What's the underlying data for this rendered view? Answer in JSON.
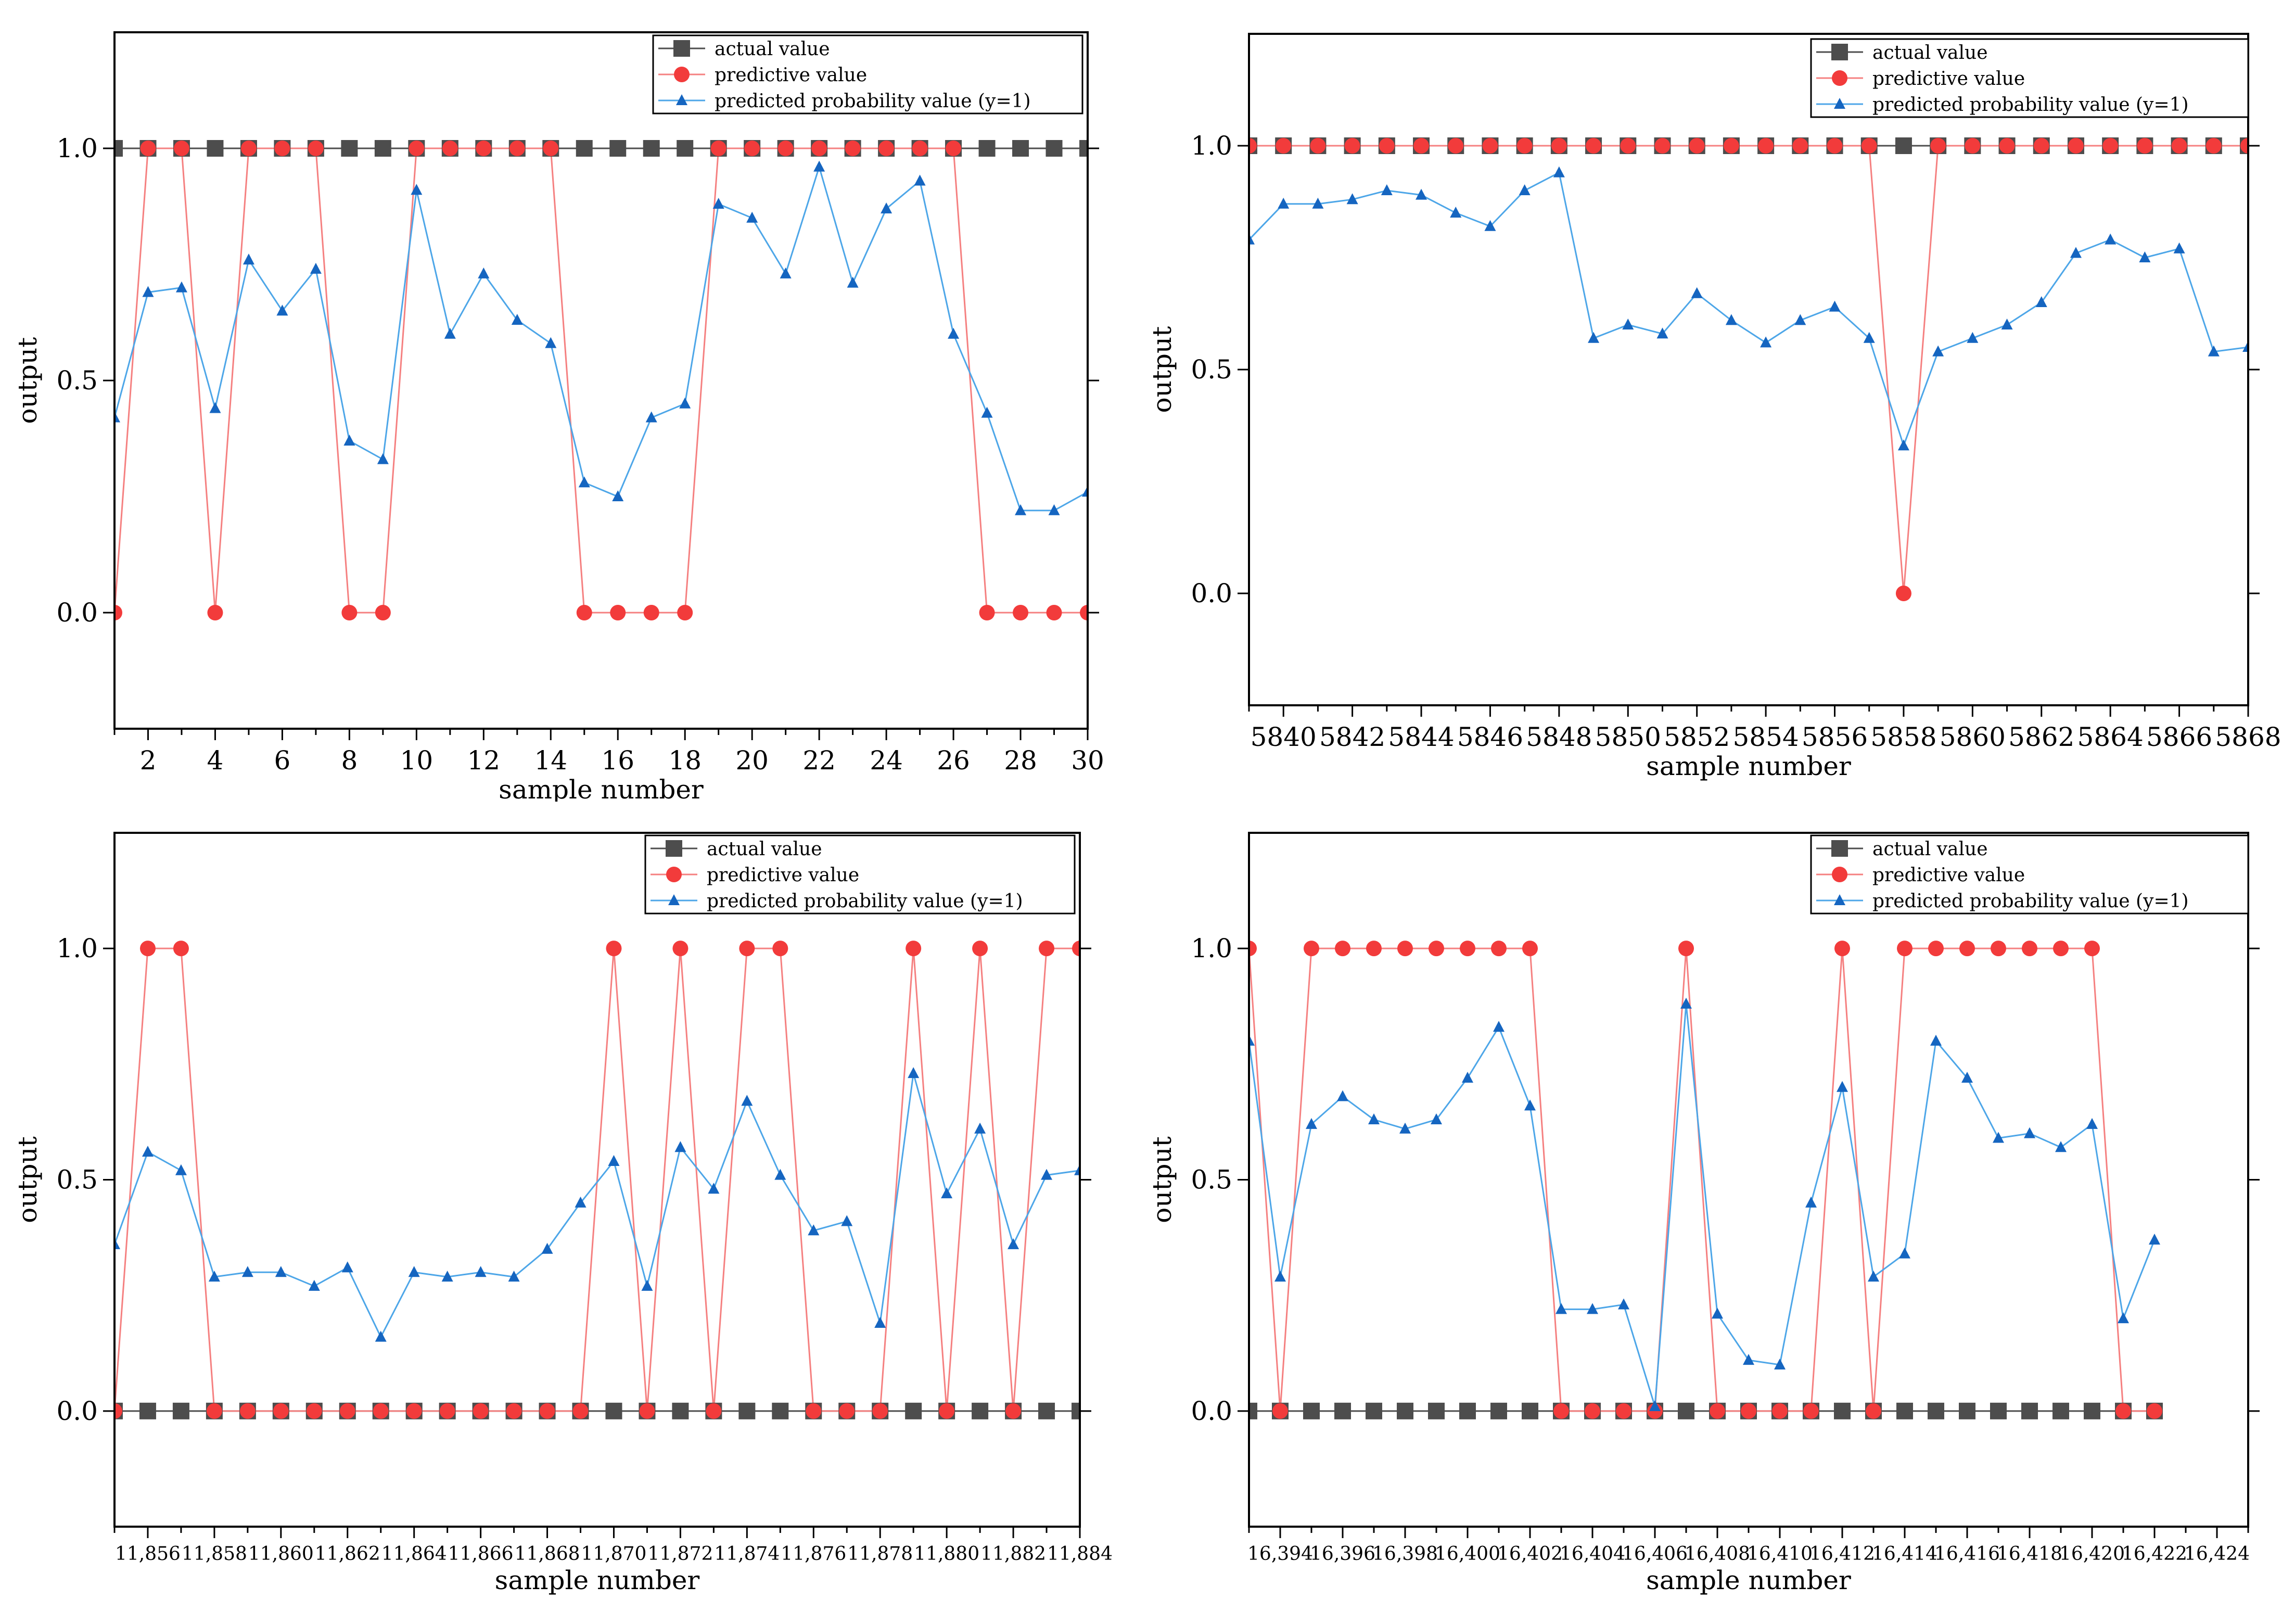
{
  "legend": {
    "actual": "actual value",
    "predictive": "predictive value",
    "probability": "predicted probability value (y=1)"
  },
  "colors": {
    "actual": "#4d4d4d",
    "predictive": "#f23b3b",
    "predictive_line": "#f58080",
    "probability": "#1565c0",
    "probability_line": "#4da6e8"
  },
  "chart_data": [
    {
      "type": "line",
      "title": "",
      "xlabel": "sample number",
      "ylabel": "output",
      "x_start": 1,
      "xlim": [
        1,
        30
      ],
      "ylim": [
        -0.25,
        1.25
      ],
      "yticks": [
        0.0,
        0.5,
        1.0
      ],
      "ytick_labels": [
        "0.0",
        "0.5",
        "1.0"
      ],
      "xticks": [
        2,
        4,
        6,
        8,
        10,
        12,
        14,
        16,
        18,
        20,
        22,
        24,
        26,
        28,
        30
      ],
      "xtick_labels": [
        "2",
        "4",
        "6",
        "8",
        "10",
        "12",
        "14",
        "16",
        "18",
        "20",
        "22",
        "24",
        "26",
        "28",
        "30"
      ],
      "series": [
        {
          "name": "actual value",
          "values": [
            1,
            1,
            1,
            1,
            1,
            1,
            1,
            1,
            1,
            1,
            1,
            1,
            1,
            1,
            1,
            1,
            1,
            1,
            1,
            1,
            1,
            1,
            1,
            1,
            1,
            1,
            1,
            1,
            1,
            1
          ]
        },
        {
          "name": "predictive value",
          "values": [
            0,
            1,
            1,
            0,
            1,
            1,
            1,
            0,
            0,
            1,
            1,
            1,
            1,
            1,
            0,
            0,
            0,
            0,
            1,
            1,
            1,
            1,
            1,
            1,
            1,
            1,
            0,
            0,
            0,
            0
          ]
        },
        {
          "name": "predicted probability value (y=1)",
          "values": [
            0.42,
            0.69,
            0.7,
            0.44,
            0.76,
            0.65,
            0.74,
            0.37,
            0.33,
            0.91,
            0.6,
            0.73,
            0.63,
            0.58,
            0.28,
            0.25,
            0.42,
            0.45,
            0.88,
            0.85,
            0.73,
            0.96,
            0.71,
            0.87,
            0.93,
            0.6,
            0.43,
            0.22,
            0.22,
            0.26
          ]
        }
      ]
    },
    {
      "type": "line",
      "title": "",
      "xlabel": "sample number",
      "ylabel": "output",
      "x_start": 5839,
      "xlim": [
        5839,
        5868
      ],
      "ylim": [
        -0.25,
        1.25
      ],
      "yticks": [
        0.0,
        0.5,
        1.0
      ],
      "ytick_labels": [
        "0.0",
        "0.5",
        "1.0"
      ],
      "xticks": [
        5840,
        5842,
        5844,
        5846,
        5848,
        5850,
        5852,
        5854,
        5856,
        5858,
        5860,
        5862,
        5864,
        5866,
        5868
      ],
      "xtick_labels": [
        "5840",
        "5842",
        "5844",
        "5846",
        "5848",
        "5850",
        "5852",
        "5854",
        "5856",
        "5858",
        "5860",
        "5862",
        "5864",
        "5866",
        "5868"
      ],
      "series": [
        {
          "name": "actual value",
          "values": [
            1,
            1,
            1,
            1,
            1,
            1,
            1,
            1,
            1,
            1,
            1,
            1,
            1,
            1,
            1,
            1,
            1,
            1,
            1,
            1,
            1,
            1,
            1,
            1,
            1,
            1,
            1,
            1,
            1,
            1
          ]
        },
        {
          "name": "predictive value",
          "values": [
            1,
            1,
            1,
            1,
            1,
            1,
            1,
            1,
            1,
            1,
            1,
            1,
            1,
            1,
            1,
            1,
            1,
            1,
            1,
            0,
            1,
            1,
            1,
            1,
            1,
            1,
            1,
            1,
            1,
            1
          ]
        },
        {
          "name": "predicted probability value (y=1)",
          "values": [
            0.79,
            0.87,
            0.87,
            0.88,
            0.9,
            0.89,
            0.85,
            0.82,
            0.9,
            0.94,
            0.57,
            0.6,
            0.58,
            0.67,
            0.61,
            0.56,
            0.61,
            0.64,
            0.57,
            0.33,
            0.54,
            0.57,
            0.6,
            0.65,
            0.76,
            0.79,
            0.75,
            0.77,
            0.54,
            0.55
          ]
        }
      ]
    },
    {
      "type": "line",
      "title": "",
      "xlabel": "sample number",
      "ylabel": "output",
      "x_start": 11855,
      "xlim": [
        11855,
        11884
      ],
      "ylim": [
        -0.25,
        1.25
      ],
      "yticks": [
        0.0,
        0.5,
        1.0
      ],
      "ytick_labels": [
        "0.0",
        "0.5",
        "1.0"
      ],
      "xticks": [
        11856,
        11858,
        11860,
        11862,
        11864,
        11866,
        11868,
        11870,
        11872,
        11874,
        11876,
        11878,
        11880,
        11882,
        11884
      ],
      "xtick_labels": [
        "11,856",
        "11,858",
        "11,860",
        "11,862",
        "11,864",
        "11,866",
        "11,868",
        "11,870",
        "11,872",
        "11,874",
        "11,876",
        "11,878",
        "11,880",
        "11,882",
        "11,884"
      ],
      "series": [
        {
          "name": "actual value",
          "values": [
            0,
            0,
            0,
            0,
            0,
            0,
            0,
            0,
            0,
            0,
            0,
            0,
            0,
            0,
            0,
            0,
            0,
            0,
            0,
            0,
            0,
            0,
            0,
            0,
            0,
            0,
            0,
            0,
            0,
            0
          ]
        },
        {
          "name": "predictive value",
          "values": [
            0,
            1,
            1,
            0,
            0,
            0,
            0,
            0,
            0,
            0,
            0,
            0,
            0,
            0,
            0,
            1,
            0,
            1,
            0,
            1,
            1,
            0,
            0,
            0,
            1,
            0,
            1,
            0,
            1,
            1
          ]
        },
        {
          "name": "predicted probability value (y=1)",
          "values": [
            0.36,
            0.56,
            0.52,
            0.29,
            0.3,
            0.3,
            0.27,
            0.31,
            0.16,
            0.3,
            0.29,
            0.3,
            0.29,
            0.35,
            0.45,
            0.54,
            0.27,
            0.57,
            0.48,
            0.67,
            0.51,
            0.39,
            0.41,
            0.19,
            0.73,
            0.47,
            0.61,
            0.36,
            0.51,
            0.52
          ]
        }
      ]
    },
    {
      "type": "line",
      "title": "",
      "xlabel": "sample number",
      "ylabel": "output",
      "x_start": 16393,
      "xlim": [
        16393,
        16425
      ],
      "ylim": [
        -0.25,
        1.25
      ],
      "yticks": [
        0.0,
        0.5,
        1.0
      ],
      "ytick_labels": [
        "0.0",
        "0.5",
        "1.0"
      ],
      "xticks": [
        16394,
        16396,
        16398,
        16400,
        16402,
        16404,
        16406,
        16408,
        16410,
        16412,
        16414,
        16416,
        16418,
        16420,
        16422,
        16424
      ],
      "xtick_labels": [
        "16,394",
        "16,396",
        "16,398",
        "16,400",
        "16,402",
        "16,404",
        "16,406",
        "16,408",
        "16,410",
        "16,412",
        "16,414",
        "16,416",
        "16,418",
        "16,420",
        "16,422",
        "16,424"
      ],
      "series": [
        {
          "name": "actual value",
          "values": [
            0,
            0,
            0,
            0,
            0,
            0,
            0,
            0,
            0,
            0,
            0,
            0,
            0,
            0,
            0,
            0,
            0,
            0,
            0,
            0,
            0,
            0,
            0,
            0,
            0,
            0,
            0,
            0,
            0,
            0
          ]
        },
        {
          "name": "predictive value",
          "values": [
            1,
            0,
            1,
            1,
            1,
            1,
            1,
            1,
            1,
            1,
            0,
            0,
            0,
            0,
            1,
            0,
            0,
            0,
            0,
            1,
            0,
            1,
            1,
            1,
            1,
            1,
            1,
            1,
            0,
            0
          ]
        },
        {
          "name": "predicted probability value (y=1)",
          "values": [
            0.8,
            0.29,
            0.62,
            0.68,
            0.63,
            0.61,
            0.63,
            0.72,
            0.83,
            0.66,
            0.22,
            0.22,
            0.23,
            0.01,
            0.88,
            0.21,
            0.11,
            0.1,
            0.45,
            0.7,
            0.29,
            0.34,
            0.8,
            0.72,
            0.59,
            0.6,
            0.57,
            0.62,
            0.2,
            0.37
          ]
        }
      ]
    }
  ]
}
